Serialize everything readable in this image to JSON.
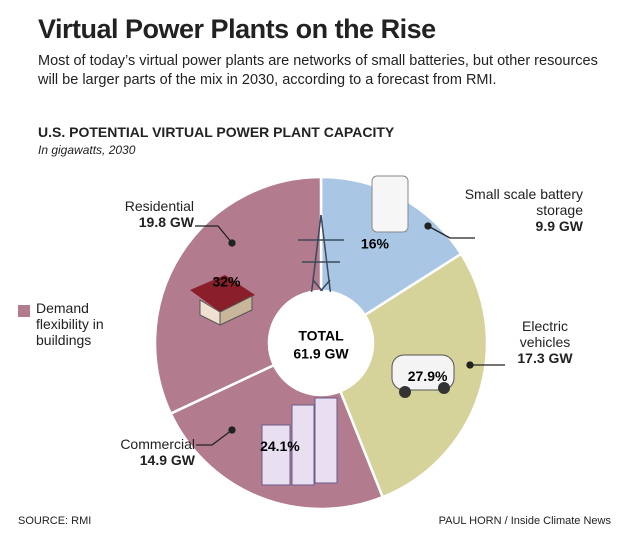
{
  "header": {
    "title": "Virtual Power Plants on the Rise",
    "subtitle": "Most of today’s virtual power plants are networks of small batteries, but other resources will be larger parts of the mix in 2030, according to a forecast from RMI."
  },
  "chart_data": {
    "type": "donut",
    "title": "U.S. POTENTIAL VIRTUAL POWER PLANT CAPACITY",
    "subtitle": "In gigawatts, 2030",
    "categories": [
      "Small scale battery storage",
      "Electric vehicles",
      "Commercial",
      "Residential"
    ],
    "values": [
      9.9,
      17.3,
      14.9,
      19.8
    ],
    "value_labels": [
      "9.9 GW",
      "17.3 GW",
      "14.9 GW",
      "19.8 GW"
    ],
    "percent_labels": [
      "16%",
      "27.9%",
      "24.1%",
      "32%"
    ],
    "colors": [
      "#a9c7e4",
      "#d5d29a",
      "#b27b8e",
      "#b27b8e"
    ],
    "center_label": "TOTAL",
    "center_value": "61.9 GW",
    "legend": {
      "label": "Demand flexibility in buildings",
      "color": "#b27b8e"
    }
  },
  "footer": {
    "source": "SOURCE: RMI",
    "credit": "PAUL HORN / Inside Climate News"
  }
}
